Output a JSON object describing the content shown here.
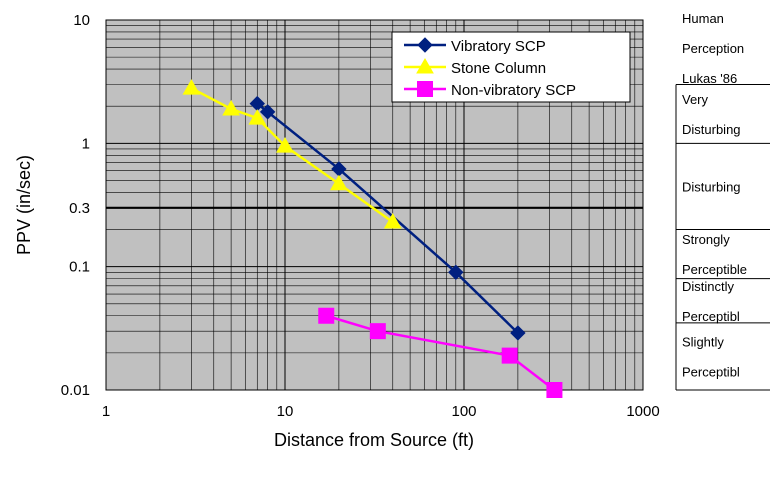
{
  "chart_data": {
    "type": "line",
    "title": "",
    "xlabel": "Distance from Source (ft)",
    "ylabel": "PPV (in/sec)",
    "x_scale": "log",
    "y_scale": "log",
    "xlim": [
      1,
      1000
    ],
    "ylim": [
      0.01,
      10
    ],
    "x_ticks": [
      1,
      10,
      100,
      1000
    ],
    "x_tick_labels": [
      "1",
      "10",
      "100",
      "1000"
    ],
    "y_ticks": [
      0.01,
      0.1,
      0.3,
      1,
      10
    ],
    "y_tick_labels": [
      "0.01",
      "0.1",
      "0.3",
      "1",
      "10"
    ],
    "grid": true,
    "plot_background": "#c0c0c0",
    "legend_position": "top-right",
    "reference_line": {
      "y": 0.3,
      "color": "#000000"
    },
    "series": [
      {
        "name": "Vibratory SCP",
        "color": "#002080",
        "marker": "diamond",
        "x": [
          7,
          8,
          20,
          90,
          200
        ],
        "y": [
          2.1,
          1.8,
          0.62,
          0.09,
          0.029
        ]
      },
      {
        "name": "Stone Column",
        "color": "#ffff00",
        "marker": "triangle",
        "x": [
          3,
          5,
          7,
          10,
          20,
          40
        ],
        "y": [
          2.8,
          1.9,
          1.6,
          0.95,
          0.47,
          0.23
        ]
      },
      {
        "name": "Non-vibratory SCP",
        "color": "#ff00ff",
        "marker": "square",
        "x": [
          17,
          33,
          180,
          320
        ],
        "y": [
          0.04,
          0.03,
          0.019,
          0.01
        ]
      }
    ],
    "perception_scale": {
      "header": [
        "Human",
        "Perception",
        "Lukas '86"
      ],
      "bands": [
        {
          "lines": [
            "Very",
            "Disturbing"
          ],
          "y_range": [
            1,
            3
          ]
        },
        {
          "lines": [
            "Disturbing"
          ],
          "y_range": [
            0.2,
            1
          ]
        },
        {
          "lines": [
            "Strongly",
            "Perceptible"
          ],
          "y_range": [
            0.08,
            0.2
          ]
        },
        {
          "lines": [
            "Distinctly",
            "Perceptibl"
          ],
          "y_range": [
            0.035,
            0.08
          ]
        },
        {
          "lines": [
            "Slightly",
            "Perceptibl"
          ],
          "y_range": [
            0.01,
            0.035
          ]
        }
      ]
    }
  }
}
